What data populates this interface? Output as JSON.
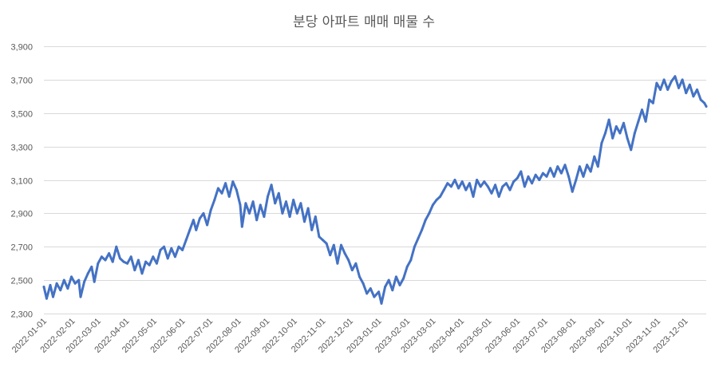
{
  "chart_data": {
    "type": "line",
    "title": "분당 아파트 매매 매물 수",
    "xlabel": "",
    "ylabel": "",
    "ylim": [
      2300,
      3900
    ],
    "yticks": [
      2300,
      2500,
      2700,
      2900,
      3100,
      3300,
      3500,
      3700,
      3900
    ],
    "ytick_labels": [
      "2,300",
      "2,500",
      "2,700",
      "2,900",
      "3,100",
      "3,300",
      "3,500",
      "3,700",
      "3,900"
    ],
    "xlim": [
      "2022-01-01",
      "2023-12-24"
    ],
    "xtick_labels": [
      "2022-01-01",
      "2022-02-01",
      "2022-03-01",
      "2022-04-01",
      "2022-05-01",
      "2022-06-01",
      "2022-07-01",
      "2022-08-01",
      "2022-09-01",
      "2022-10-01",
      "2022-11-01",
      "2022-12-01",
      "2023-01-01",
      "2023-02-01",
      "2023-03-01",
      "2023-04-01",
      "2023-05-01",
      "2023-06-01",
      "2023-07-01",
      "2023-08-01",
      "2023-09-01",
      "2023-10-01",
      "2023-11-01",
      "2023-12-01"
    ],
    "grid": true,
    "legend": "none",
    "line_color": "#4472c4",
    "series": [
      {
        "points": [
          [
            "2022-01-01",
            2460
          ],
          [
            "2022-01-04",
            2390
          ],
          [
            "2022-01-08",
            2470
          ],
          [
            "2022-01-11",
            2400
          ],
          [
            "2022-01-15",
            2480
          ],
          [
            "2022-01-19",
            2440
          ],
          [
            "2022-01-23",
            2500
          ],
          [
            "2022-01-27",
            2450
          ],
          [
            "2022-01-31",
            2520
          ],
          [
            "2022-02-04",
            2480
          ],
          [
            "2022-02-08",
            2500
          ],
          [
            "2022-02-10",
            2400
          ],
          [
            "2022-02-14",
            2490
          ],
          [
            "2022-02-18",
            2540
          ],
          [
            "2022-02-22",
            2580
          ],
          [
            "2022-02-25",
            2490
          ],
          [
            "2022-03-01",
            2600
          ],
          [
            "2022-03-05",
            2640
          ],
          [
            "2022-03-09",
            2620
          ],
          [
            "2022-03-13",
            2660
          ],
          [
            "2022-03-17",
            2610
          ],
          [
            "2022-03-21",
            2700
          ],
          [
            "2022-03-25",
            2630
          ],
          [
            "2022-03-29",
            2610
          ],
          [
            "2022-04-02",
            2600
          ],
          [
            "2022-04-06",
            2640
          ],
          [
            "2022-04-10",
            2560
          ],
          [
            "2022-04-14",
            2620
          ],
          [
            "2022-04-18",
            2540
          ],
          [
            "2022-04-22",
            2610
          ],
          [
            "2022-04-26",
            2590
          ],
          [
            "2022-04-30",
            2640
          ],
          [
            "2022-05-04",
            2600
          ],
          [
            "2022-05-08",
            2680
          ],
          [
            "2022-05-12",
            2700
          ],
          [
            "2022-05-16",
            2630
          ],
          [
            "2022-05-20",
            2690
          ],
          [
            "2022-05-24",
            2640
          ],
          [
            "2022-05-28",
            2700
          ],
          [
            "2022-06-01",
            2680
          ],
          [
            "2022-06-05",
            2740
          ],
          [
            "2022-06-09",
            2800
          ],
          [
            "2022-06-13",
            2860
          ],
          [
            "2022-06-16",
            2800
          ],
          [
            "2022-06-20",
            2870
          ],
          [
            "2022-06-24",
            2900
          ],
          [
            "2022-06-28",
            2830
          ],
          [
            "2022-07-02",
            2920
          ],
          [
            "2022-07-06",
            2980
          ],
          [
            "2022-07-10",
            3050
          ],
          [
            "2022-07-14",
            3020
          ],
          [
            "2022-07-18",
            3080
          ],
          [
            "2022-07-22",
            3000
          ],
          [
            "2022-07-26",
            3090
          ],
          [
            "2022-07-30",
            3040
          ],
          [
            "2022-08-03",
            2950
          ],
          [
            "2022-08-05",
            2820
          ],
          [
            "2022-08-09",
            2960
          ],
          [
            "2022-08-13",
            2900
          ],
          [
            "2022-08-17",
            2970
          ],
          [
            "2022-08-21",
            2860
          ],
          [
            "2022-08-25",
            2950
          ],
          [
            "2022-08-29",
            2880
          ],
          [
            "2022-09-02",
            3000
          ],
          [
            "2022-09-06",
            3070
          ],
          [
            "2022-09-10",
            2960
          ],
          [
            "2022-09-14",
            3020
          ],
          [
            "2022-09-18",
            2900
          ],
          [
            "2022-09-22",
            2970
          ],
          [
            "2022-09-26",
            2880
          ],
          [
            "2022-09-30",
            2980
          ],
          [
            "2022-10-04",
            2900
          ],
          [
            "2022-10-08",
            2960
          ],
          [
            "2022-10-12",
            2850
          ],
          [
            "2022-10-16",
            2930
          ],
          [
            "2022-10-20",
            2800
          ],
          [
            "2022-10-24",
            2880
          ],
          [
            "2022-10-28",
            2760
          ],
          [
            "2022-11-01",
            2740
          ],
          [
            "2022-11-05",
            2720
          ],
          [
            "2022-11-09",
            2650
          ],
          [
            "2022-11-13",
            2710
          ],
          [
            "2022-11-17",
            2600
          ],
          [
            "2022-11-21",
            2710
          ],
          [
            "2022-11-25",
            2660
          ],
          [
            "2022-11-29",
            2620
          ],
          [
            "2022-12-03",
            2560
          ],
          [
            "2022-12-07",
            2600
          ],
          [
            "2022-12-11",
            2520
          ],
          [
            "2022-12-15",
            2480
          ],
          [
            "2022-12-19",
            2420
          ],
          [
            "2022-12-23",
            2450
          ],
          [
            "2022-12-27",
            2400
          ],
          [
            "2023-01-01",
            2430
          ],
          [
            "2023-01-04",
            2360
          ],
          [
            "2023-01-08",
            2460
          ],
          [
            "2023-01-12",
            2500
          ],
          [
            "2023-01-16",
            2440
          ],
          [
            "2023-01-20",
            2520
          ],
          [
            "2023-01-24",
            2470
          ],
          [
            "2023-01-28",
            2510
          ],
          [
            "2023-02-01",
            2580
          ],
          [
            "2023-02-05",
            2620
          ],
          [
            "2023-02-09",
            2700
          ],
          [
            "2023-02-13",
            2750
          ],
          [
            "2023-02-17",
            2800
          ],
          [
            "2023-02-21",
            2860
          ],
          [
            "2023-02-25",
            2900
          ],
          [
            "2023-03-01",
            2950
          ],
          [
            "2023-03-05",
            2980
          ],
          [
            "2023-03-09",
            3000
          ],
          [
            "2023-03-13",
            3040
          ],
          [
            "2023-03-17",
            3080
          ],
          [
            "2023-03-21",
            3060
          ],
          [
            "2023-03-25",
            3100
          ],
          [
            "2023-03-29",
            3050
          ],
          [
            "2023-04-02",
            3090
          ],
          [
            "2023-04-06",
            3040
          ],
          [
            "2023-04-10",
            3080
          ],
          [
            "2023-04-14",
            3000
          ],
          [
            "2023-04-18",
            3100
          ],
          [
            "2023-04-22",
            3060
          ],
          [
            "2023-04-26",
            3090
          ],
          [
            "2023-04-30",
            3060
          ],
          [
            "2023-05-04",
            3020
          ],
          [
            "2023-05-08",
            3070
          ],
          [
            "2023-05-12",
            3000
          ],
          [
            "2023-05-16",
            3060
          ],
          [
            "2023-05-20",
            3080
          ],
          [
            "2023-05-24",
            3040
          ],
          [
            "2023-05-28",
            3090
          ],
          [
            "2023-06-01",
            3110
          ],
          [
            "2023-06-05",
            3150
          ],
          [
            "2023-06-09",
            3060
          ],
          [
            "2023-06-13",
            3120
          ],
          [
            "2023-06-17",
            3080
          ],
          [
            "2023-06-21",
            3130
          ],
          [
            "2023-06-25",
            3100
          ],
          [
            "2023-06-29",
            3140
          ],
          [
            "2023-07-03",
            3120
          ],
          [
            "2023-07-07",
            3170
          ],
          [
            "2023-07-11",
            3120
          ],
          [
            "2023-07-15",
            3180
          ],
          [
            "2023-07-19",
            3140
          ],
          [
            "2023-07-23",
            3190
          ],
          [
            "2023-07-27",
            3120
          ],
          [
            "2023-07-31",
            3030
          ],
          [
            "2023-08-04",
            3100
          ],
          [
            "2023-08-08",
            3180
          ],
          [
            "2023-08-12",
            3120
          ],
          [
            "2023-08-16",
            3190
          ],
          [
            "2023-08-20",
            3150
          ],
          [
            "2023-08-24",
            3240
          ],
          [
            "2023-08-28",
            3180
          ],
          [
            "2023-09-01",
            3320
          ],
          [
            "2023-09-05",
            3380
          ],
          [
            "2023-09-09",
            3460
          ],
          [
            "2023-09-13",
            3350
          ],
          [
            "2023-09-17",
            3420
          ],
          [
            "2023-09-21",
            3380
          ],
          [
            "2023-09-25",
            3440
          ],
          [
            "2023-09-29",
            3350
          ],
          [
            "2023-10-03",
            3280
          ],
          [
            "2023-10-07",
            3380
          ],
          [
            "2023-10-11",
            3450
          ],
          [
            "2023-10-15",
            3520
          ],
          [
            "2023-10-19",
            3450
          ],
          [
            "2023-10-23",
            3580
          ],
          [
            "2023-10-27",
            3560
          ],
          [
            "2023-10-31",
            3680
          ],
          [
            "2023-11-04",
            3640
          ],
          [
            "2023-11-08",
            3700
          ],
          [
            "2023-11-12",
            3640
          ],
          [
            "2023-11-16",
            3690
          ],
          [
            "2023-11-20",
            3720
          ],
          [
            "2023-11-24",
            3650
          ],
          [
            "2023-11-28",
            3700
          ],
          [
            "2023-12-02",
            3620
          ],
          [
            "2023-12-06",
            3670
          ],
          [
            "2023-12-10",
            3600
          ],
          [
            "2023-12-14",
            3640
          ],
          [
            "2023-12-18",
            3580
          ],
          [
            "2023-12-22",
            3560
          ],
          [
            "2023-12-24",
            3540
          ]
        ]
      }
    ]
  }
}
